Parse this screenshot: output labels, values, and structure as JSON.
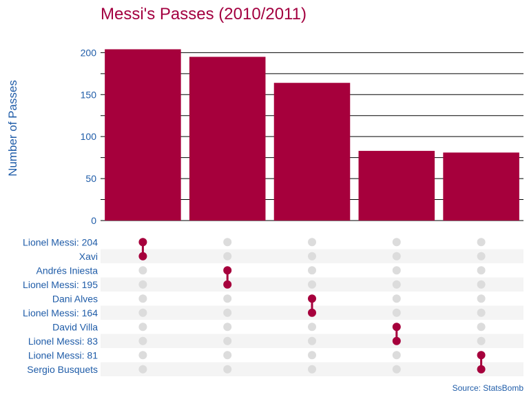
{
  "colors": {
    "title": "#a30040",
    "bar": "#a6003c",
    "axis_text": "#1f5ca8",
    "dot_active": "#a6003c",
    "dot_inactive": "#dcdcdc",
    "stripe": "#f4f4f4",
    "grid": "#000000"
  },
  "chart_data": {
    "type": "bar",
    "title": "Messi's Passes (2010/2011)",
    "ylabel": "Number of Passes",
    "xlabel": "",
    "ylim": [
      0,
      220
    ],
    "y_ticks": [
      0,
      50,
      100,
      150,
      200
    ],
    "grid": true,
    "values": [
      204,
      195,
      164,
      83,
      81
    ],
    "source": "Source: StatsBomb",
    "matrix": {
      "set_labels": [
        "Lionel Messi: 204",
        "Xavi",
        "Andrés Iniesta",
        "Lionel Messi: 195",
        "Dani Alves",
        "Lionel Messi: 164",
        "David Villa",
        "Lionel Messi: 83",
        "Lionel Messi: 81",
        "Sergio Busquets"
      ],
      "memberships": [
        [
          0,
          1
        ],
        [
          2,
          3
        ],
        [
          4,
          5
        ],
        [
          6,
          7
        ],
        [
          8,
          9
        ]
      ]
    }
  }
}
